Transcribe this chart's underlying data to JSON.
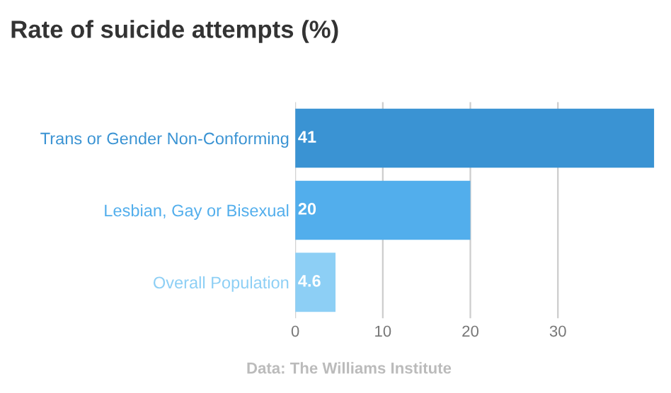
{
  "chart_data": {
    "type": "bar",
    "orientation": "horizontal",
    "title": "Rate of suicide attempts (%)",
    "categories": [
      "Trans or Gender Non-Conforming",
      "Lesbian, Gay or Bisexual",
      "Overall Population"
    ],
    "values": [
      41,
      20,
      4.6
    ],
    "colors": [
      "#3a93d3",
      "#52aeec",
      "#8dcff5"
    ],
    "xlim": [
      0,
      41
    ],
    "xticks": [
      0,
      10,
      20,
      30
    ],
    "grid": "x",
    "data_labels": true,
    "annotations": [
      "Data: The Williams Institute"
    ]
  }
}
